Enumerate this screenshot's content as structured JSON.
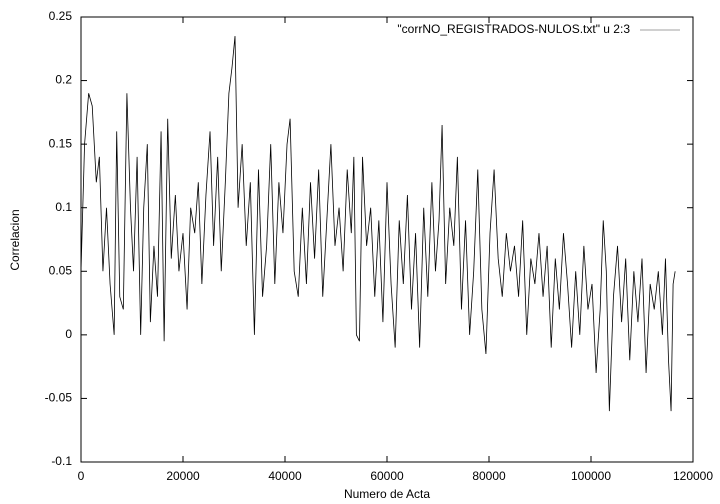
{
  "chart_data": {
    "type": "line",
    "xlabel": "Numero de Acta",
    "ylabel": "Correlacion",
    "xlim": [
      0,
      120000
    ],
    "ylim": [
      -0.1,
      0.25
    ],
    "xticks": [
      0,
      20000,
      40000,
      60000,
      80000,
      100000,
      120000
    ],
    "yticks": [
      -0.1,
      -0.05,
      0,
      0.05,
      0.1,
      0.15,
      0.2,
      0.25
    ],
    "legend": "top-right",
    "series": [
      {
        "name": "\"corrNO_REGISTRADOS-NULOS.txt\" u 2:3",
        "color": "#000000",
        "legend_color": "#a0a0a0",
        "x": [
          0,
          700,
          1500,
          2200,
          3000,
          3600,
          4300,
          5000,
          5700,
          6500,
          7000,
          7600,
          8300,
          9000,
          9700,
          10300,
          11000,
          11700,
          12300,
          13000,
          13600,
          14300,
          15000,
          15700,
          16300,
          17000,
          17700,
          18500,
          19200,
          20000,
          20800,
          21500,
          22300,
          23000,
          23700,
          24500,
          25300,
          26000,
          26800,
          27500,
          28300,
          29000,
          29600,
          30200,
          30800,
          31600,
          32400,
          33200,
          34000,
          34800,
          35600,
          36400,
          37200,
          38000,
          38800,
          39600,
          40400,
          41000,
          41800,
          42600,
          43400,
          44200,
          45000,
          45800,
          46600,
          47400,
          48200,
          49000,
          49800,
          50600,
          51400,
          52200,
          53000,
          53500,
          54000,
          54600,
          55200,
          56000,
          56800,
          57600,
          58400,
          59200,
          60000,
          60800,
          61600,
          62400,
          63200,
          64000,
          64800,
          65600,
          66400,
          67200,
          68000,
          68800,
          69500,
          70200,
          70800,
          71500,
          72300,
          73100,
          73800,
          74600,
          75400,
          76200,
          77000,
          77800,
          78600,
          79400,
          80200,
          81000,
          81800,
          82600,
          83400,
          84200,
          85000,
          85800,
          86600,
          87400,
          88200,
          89000,
          89800,
          90600,
          91400,
          92200,
          93000,
          93800,
          94600,
          95400,
          96200,
          97000,
          97800,
          98600,
          99400,
          100200,
          101000,
          101800,
          102400,
          103000,
          103600,
          104400,
          105200,
          106000,
          106800,
          107600,
          108400,
          109200,
          110000,
          110800,
          111600,
          112400,
          113200,
          114000,
          114600,
          115200,
          115700,
          116100,
          116500
        ],
        "values": [
          0.05,
          0.15,
          0.19,
          0.18,
          0.12,
          0.14,
          0.05,
          0.1,
          0.04,
          0.0,
          0.16,
          0.03,
          0.02,
          0.19,
          0.1,
          0.05,
          0.14,
          0.0,
          0.1,
          0.15,
          0.01,
          0.07,
          0.03,
          0.16,
          -0.005,
          0.17,
          0.06,
          0.11,
          0.05,
          0.08,
          0.02,
          0.1,
          0.08,
          0.12,
          0.04,
          0.11,
          0.16,
          0.07,
          0.14,
          0.05,
          0.12,
          0.19,
          0.21,
          0.235,
          0.1,
          0.15,
          0.07,
          0.12,
          0.0,
          0.13,
          0.03,
          0.07,
          0.15,
          0.04,
          0.12,
          0.08,
          0.15,
          0.17,
          0.05,
          0.03,
          0.1,
          0.04,
          0.12,
          0.06,
          0.13,
          0.03,
          0.09,
          0.15,
          0.07,
          0.1,
          0.05,
          0.13,
          0.08,
          0.14,
          0.0,
          -0.005,
          0.14,
          0.07,
          0.1,
          0.03,
          0.09,
          0.01,
          0.12,
          0.04,
          -0.01,
          0.09,
          0.04,
          0.11,
          0.02,
          0.08,
          -0.01,
          0.1,
          0.03,
          0.12,
          0.05,
          0.09,
          0.165,
          0.04,
          0.1,
          0.07,
          0.14,
          0.02,
          0.09,
          0.0,
          0.05,
          0.13,
          0.02,
          -0.015,
          0.08,
          0.13,
          0.06,
          0.03,
          0.08,
          0.05,
          0.07,
          0.03,
          0.09,
          0.0,
          0.06,
          0.04,
          0.08,
          0.03,
          0.07,
          -0.01,
          0.06,
          0.02,
          0.08,
          0.04,
          -0.01,
          0.05,
          0.0,
          0.07,
          0.02,
          0.04,
          -0.03,
          0.02,
          0.09,
          0.05,
          -0.06,
          0.03,
          0.07,
          0.01,
          0.06,
          -0.02,
          0.05,
          0.01,
          0.06,
          -0.03,
          0.04,
          0.02,
          0.05,
          0.0,
          0.06,
          -0.02,
          -0.06,
          0.04,
          0.05
        ]
      }
    ]
  }
}
